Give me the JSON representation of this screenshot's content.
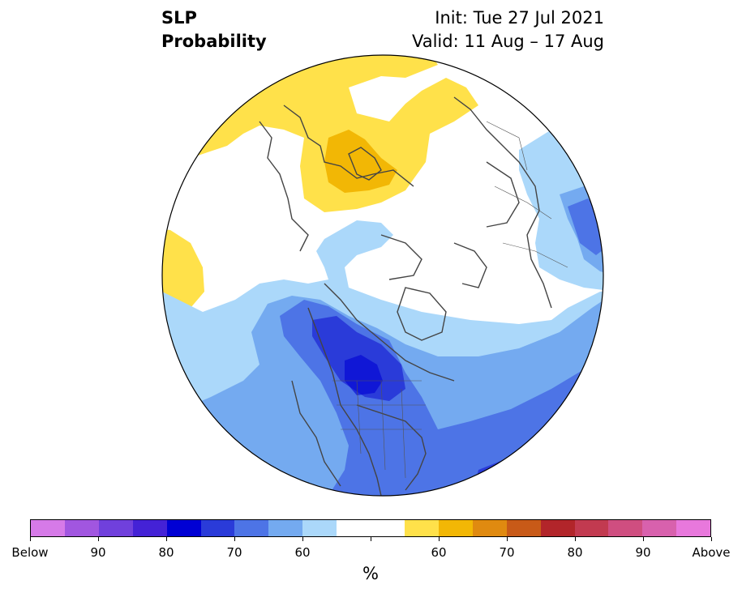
{
  "title": {
    "left_line1": "SLP",
    "left_line2": "Probability",
    "right_line1": "Init: Tue 27 Jul 2021",
    "right_line2": "Valid: 11 Aug – 17 Aug"
  },
  "colorbar": {
    "colors": [
      "#d67ae8",
      "#a156e0",
      "#7040dc",
      "#4422d6",
      "#0000d4",
      "#2a3bd9",
      "#4d74e6",
      "#74aaf0",
      "#abd8fa",
      "#ffffff",
      "#ffffff",
      "#ffe14a",
      "#f2b705",
      "#e08a10",
      "#c85a18",
      "#b2252a",
      "#c23a50",
      "#cf4e80",
      "#d861ad",
      "#e878dc"
    ],
    "tick_labels": [
      "Below",
      "90",
      "80",
      "70",
      "60",
      "",
      "60",
      "70",
      "80",
      "90",
      "Above"
    ],
    "unit": "%"
  },
  "map_legend_colors": {
    "below_40_50": "#abd8fa",
    "below_50_60": "#74aaf0",
    "below_60_70": "#4d74e6",
    "below_70_80": "#2a3bd9",
    "above_40_50": "#ffe14a",
    "above_50_60": "#f2b705",
    "coastline": "#444444"
  }
}
